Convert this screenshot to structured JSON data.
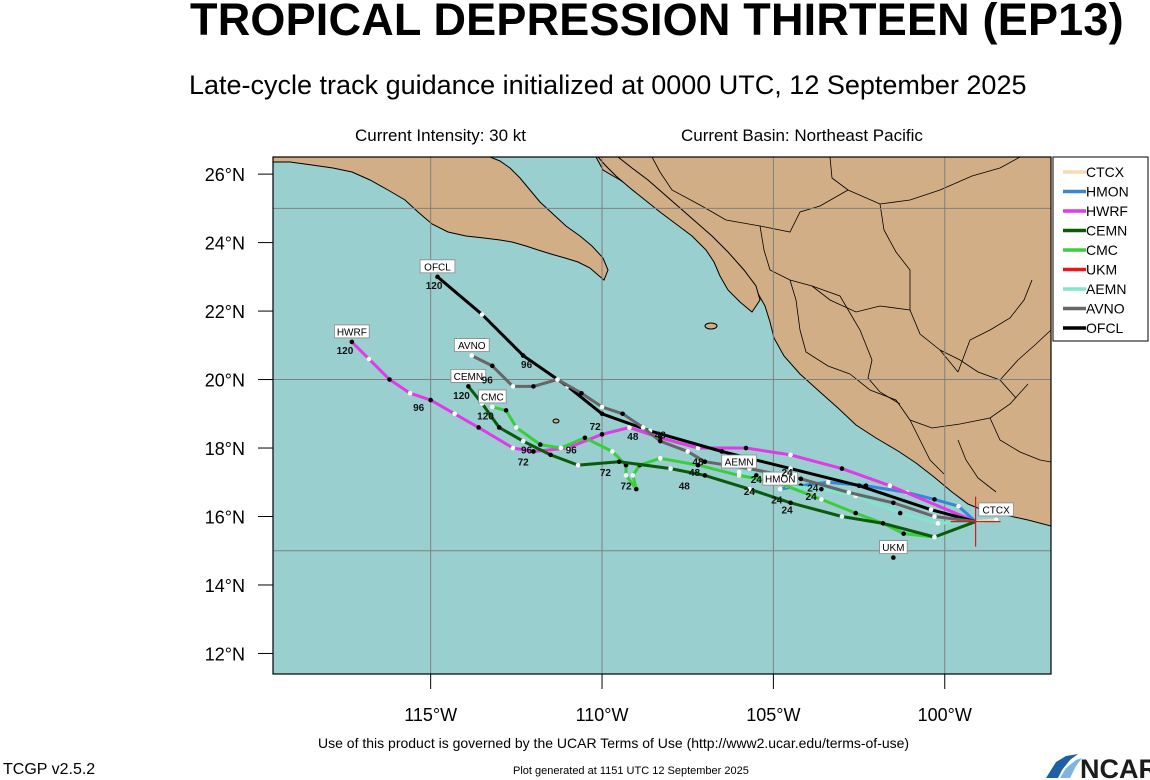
{
  "header": {
    "title": "TROPICAL DEPRESSION THIRTEEN (EP13)",
    "subtitle": "Late-cycle track guidance initialized at 0000 UTC, 12 September 2025",
    "current_intensity": "Current Intensity: 30 kt",
    "current_basin": "Current Basin: Northeast Pacific"
  },
  "footer": {
    "terms": "Use of this product is governed by the UCAR Terms of Use (http://www2.ucar.edu/terms-of-use)",
    "generated": "Plot generated at 1151 UTC   12 September 2025",
    "version": "TCGP v2.5.2",
    "logo_text": "NCAR"
  },
  "colors": {
    "ocean": "#99cfcf",
    "land": "#d1ae86",
    "border": "#000000",
    "grid": "#808080"
  },
  "chart_data": {
    "type": "map-track",
    "lon_range": [
      -119.6,
      -96.9
    ],
    "lat_range": [
      11.4,
      26.5
    ],
    "x_ticks": [
      {
        "lon": -115,
        "label": "115°W"
      },
      {
        "lon": -110,
        "label": "110°W"
      },
      {
        "lon": -105,
        "label": "105°W"
      },
      {
        "lon": -100,
        "label": "100°W"
      }
    ],
    "y_ticks": [
      {
        "lat": 12,
        "label": "12°N"
      },
      {
        "lat": 14,
        "label": "14°N"
      },
      {
        "lat": 16,
        "label": "16°N"
      },
      {
        "lat": 18,
        "label": "18°N"
      },
      {
        "lat": 20,
        "label": "20°N"
      },
      {
        "lat": 22,
        "label": "22°N"
      },
      {
        "lat": 24,
        "label": "24°N"
      },
      {
        "lat": 26,
        "label": "26°N"
      }
    ],
    "grid_lines": {
      "lon": [
        -115,
        -110,
        -105,
        -100
      ],
      "lat": [
        15,
        20,
        25
      ]
    },
    "storm_position": {
      "lon": -99.1,
      "lat": 15.85
    },
    "legend": [
      {
        "name": "CTCX",
        "color": "#f3dcb3"
      },
      {
        "name": "HMON",
        "color": "#3a86d6"
      },
      {
        "name": "HWRF",
        "color": "#e13ae6"
      },
      {
        "name": "CEMN",
        "color": "#0a5a0a"
      },
      {
        "name": "CMC",
        "color": "#3ccd3c"
      },
      {
        "name": "UKM",
        "color": "#e81818"
      },
      {
        "name": "AEMN",
        "color": "#7fe6cd"
      },
      {
        "name": "AVNO",
        "color": "#666666"
      },
      {
        "name": "OFCL",
        "color": "#000000"
      }
    ],
    "series": [
      {
        "name": "CTCX",
        "color": "#f3dcb3",
        "points": [
          [
            -99.1,
            15.85
          ],
          [
            -98.5,
            15.9
          ]
        ],
        "end_label": "CTCX",
        "end_label_point": [
          -98.5,
          15.9
        ]
      },
      {
        "name": "UKM",
        "color": "#e81818",
        "points": [
          [
            -101.5,
            14.8
          ]
        ],
        "end_label": "UKM",
        "end_label_point": [
          -101.5,
          14.8
        ]
      },
      {
        "name": "HMON",
        "color": "#3a86d6",
        "points": [
          [
            -99.1,
            15.85
          ],
          [
            -99.6,
            16.3
          ],
          [
            -100.3,
            16.5
          ],
          [
            -101.1,
            16.7
          ],
          [
            -102.3,
            16.9
          ],
          [
            -103.4,
            17.0
          ],
          [
            -104.2,
            16.9
          ],
          [
            -104.8,
            16.8
          ]
        ],
        "end_label": "HMON",
        "end_label_point": [
          -104.8,
          16.8
        ]
      },
      {
        "name": "AEMN",
        "color": "#7fe6cd",
        "points": [
          [
            -99.1,
            15.85
          ],
          [
            -100.2,
            15.8
          ],
          [
            -101.3,
            16.1
          ],
          [
            -102.6,
            16.6
          ],
          [
            -103.6,
            16.8
          ],
          [
            -104.6,
            16.9
          ],
          [
            -105.5,
            17.2
          ],
          [
            -106.0,
            17.3
          ]
        ],
        "end_label": "AEMN",
        "end_label_point": [
          -106.0,
          17.3
        ]
      },
      {
        "name": "HWRF",
        "color": "#e13ae6",
        "points": [
          [
            -99.1,
            15.85
          ],
          [
            -101.6,
            16.9
          ],
          [
            -103.0,
            17.4
          ],
          [
            -104.5,
            17.8
          ],
          [
            -105.8,
            18.0
          ],
          [
            -107.2,
            18.0
          ],
          [
            -108.3,
            18.3
          ],
          [
            -109.2,
            18.6
          ],
          [
            -110.0,
            18.4
          ],
          [
            -111.0,
            18.0
          ],
          [
            -112.0,
            17.9
          ],
          [
            -112.6,
            18.0
          ],
          [
            -113.6,
            18.6
          ],
          [
            -114.3,
            19.0
          ],
          [
            -115.0,
            19.4
          ],
          [
            -115.6,
            19.6
          ],
          [
            -116.2,
            20.0
          ],
          [
            -116.8,
            20.6
          ],
          [
            -117.3,
            21.1
          ]
        ],
        "end_label": "HWRF",
        "end_label_point": [
          -117.3,
          21.1
        ]
      },
      {
        "name": "OFCL",
        "color": "#000000",
        "points": [
          [
            -99.1,
            15.85
          ],
          [
            -100.4,
            16.2
          ],
          [
            -102.5,
            16.9
          ],
          [
            -104.5,
            17.4
          ],
          [
            -106.5,
            17.9
          ],
          [
            -108.6,
            18.5
          ],
          [
            -110.0,
            19.0
          ],
          [
            -111.0,
            19.8
          ],
          [
            -112.3,
            20.7
          ],
          [
            -113.5,
            21.9
          ],
          [
            -114.8,
            23.0
          ]
        ],
        "end_label": "OFCL",
        "end_label_point": [
          -114.8,
          23.0
        ]
      },
      {
        "name": "AVNO",
        "color": "#666666",
        "points": [
          [
            -99.1,
            15.85
          ],
          [
            -100.3,
            16.0
          ],
          [
            -101.5,
            16.4
          ],
          [
            -102.8,
            16.7
          ],
          [
            -104.2,
            17.1
          ],
          [
            -105.7,
            17.4
          ],
          [
            -107.0,
            17.6
          ],
          [
            -107.5,
            17.9
          ],
          [
            -108.3,
            18.2
          ],
          [
            -108.8,
            18.6
          ],
          [
            -109.4,
            19.0
          ],
          [
            -110.0,
            19.2
          ],
          [
            -110.6,
            19.6
          ],
          [
            -111.3,
            20.0
          ],
          [
            -112.0,
            19.8
          ],
          [
            -112.6,
            19.8
          ],
          [
            -113.2,
            20.4
          ],
          [
            -113.8,
            20.7
          ]
        ],
        "end_label": "AVNO",
        "end_label_point": [
          -113.8,
          20.7
        ]
      },
      {
        "name": "CMC",
        "color": "#3ccd3c",
        "points": [
          [
            -99.1,
            15.85
          ],
          [
            -100.3,
            15.4
          ],
          [
            -101.2,
            15.5
          ],
          [
            -101.8,
            15.8
          ],
          [
            -102.6,
            16.1
          ],
          [
            -103.6,
            16.5
          ],
          [
            -104.9,
            17.0
          ],
          [
            -106.0,
            17.2
          ],
          [
            -107.2,
            17.5
          ],
          [
            -108.3,
            17.7
          ],
          [
            -108.9,
            17.5
          ],
          [
            -109.1,
            17.2
          ],
          [
            -109.0,
            16.8
          ],
          [
            -109.3,
            17.2
          ],
          [
            -109.3,
            17.5
          ],
          [
            -109.7,
            17.9
          ],
          [
            -110.5,
            18.3
          ],
          [
            -111.2,
            18.0
          ],
          [
            -111.8,
            18.1
          ],
          [
            -112.5,
            18.6
          ],
          [
            -112.8,
            19.1
          ],
          [
            -113.2,
            19.2
          ]
        ],
        "end_label": "CMC",
        "end_label_point": [
          -113.2,
          19.2
        ]
      },
      {
        "name": "CEMN",
        "color": "#0a5a0a",
        "points": [
          [
            -99.1,
            15.85
          ],
          [
            -100.3,
            15.4
          ],
          [
            -101.8,
            15.8
          ],
          [
            -103.0,
            16.0
          ],
          [
            -104.5,
            16.4
          ],
          [
            -105.7,
            16.8
          ],
          [
            -107.0,
            17.2
          ],
          [
            -108.0,
            17.4
          ],
          [
            -109.5,
            17.6
          ],
          [
            -110.7,
            17.5
          ],
          [
            -111.5,
            17.8
          ],
          [
            -112.3,
            18.2
          ],
          [
            -113.0,
            18.6
          ],
          [
            -113.5,
            19.3
          ],
          [
            -113.9,
            19.8
          ]
        ],
        "end_label": "CEMN",
        "end_label_point": [
          -113.9,
          19.8
        ]
      }
    ],
    "hour_labels": [
      {
        "text": "120",
        "lon": -114.9,
        "lat": 22.76
      },
      {
        "text": "120",
        "lon": -117.5,
        "lat": 20.86
      },
      {
        "text": "96",
        "lon": -112.2,
        "lat": 20.45
      },
      {
        "text": "96",
        "lon": -113.35,
        "lat": 20.0
      },
      {
        "text": "120",
        "lon": -114.1,
        "lat": 19.55
      },
      {
        "text": "96",
        "lon": -115.35,
        "lat": 19.2
      },
      {
        "text": "120",
        "lon": -113.4,
        "lat": 18.95
      },
      {
        "text": "72",
        "lon": -110.2,
        "lat": 18.65
      },
      {
        "text": "48",
        "lon": -109.1,
        "lat": 18.35
      },
      {
        "text": "48",
        "lon": -108.3,
        "lat": 18.4
      },
      {
        "text": "96",
        "lon": -112.2,
        "lat": 17.95
      },
      {
        "text": "96",
        "lon": -110.9,
        "lat": 17.95
      },
      {
        "text": "72",
        "lon": -112.3,
        "lat": 17.6
      },
      {
        "text": "72",
        "lon": -109.9,
        "lat": 17.3
      },
      {
        "text": "72",
        "lon": -109.3,
        "lat": 16.9
      },
      {
        "text": "48",
        "lon": -107.2,
        "lat": 17.6
      },
      {
        "text": "48",
        "lon": -107.3,
        "lat": 17.3
      },
      {
        "text": "48",
        "lon": -107.6,
        "lat": 16.9
      },
      {
        "text": "24",
        "lon": -104.6,
        "lat": 17.3
      },
      {
        "text": "24",
        "lon": -105.5,
        "lat": 17.1
      },
      {
        "text": "24",
        "lon": -103.85,
        "lat": 16.85
      },
      {
        "text": "24",
        "lon": -105.7,
        "lat": 16.75
      },
      {
        "text": "24",
        "lon": -103.9,
        "lat": 16.6
      },
      {
        "text": "24",
        "lon": -104.9,
        "lat": 16.5
      },
      {
        "text": "24",
        "lon": -104.6,
        "lat": 16.2
      }
    ]
  }
}
